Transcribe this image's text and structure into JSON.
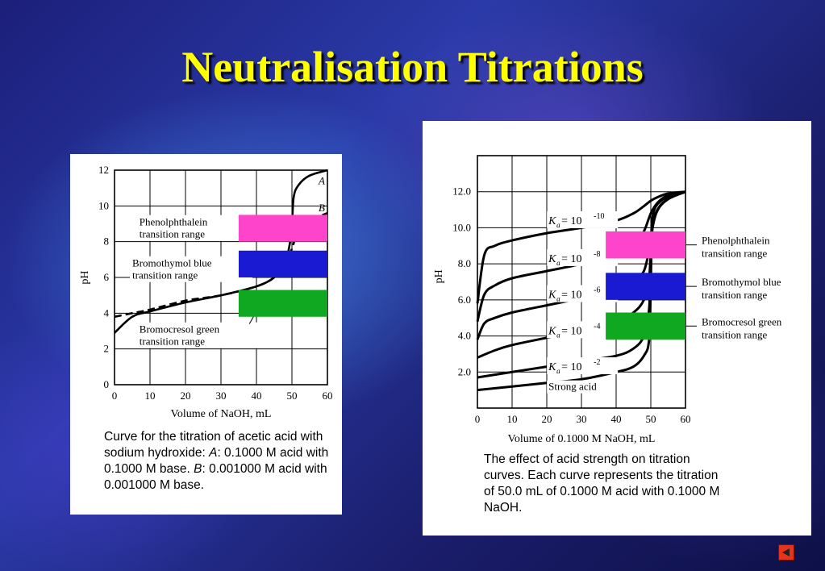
{
  "slide": {
    "title": "Neutralisation Titrations"
  },
  "colors": {
    "phenolphthalein": "#ff44cc",
    "bromothymol": "#1a1ad2",
    "bromocresol": "#10a820",
    "title": "#ffff00"
  },
  "chart_data": [
    {
      "type": "line",
      "title": "",
      "xlabel": "Volume of NaOH, mL",
      "ylabel": "pH",
      "xlim": [
        0,
        60
      ],
      "ylim": [
        0,
        12
      ],
      "xticks": [
        "0",
        "10",
        "20",
        "30",
        "40",
        "50",
        "60"
      ],
      "yticks": [
        "0",
        "2",
        "4",
        "6",
        "8",
        "10",
        "12"
      ],
      "grid": true,
      "series": [
        {
          "name": "A",
          "style": "solid",
          "x": [
            0,
            5,
            10,
            20,
            30,
            40,
            45,
            48,
            49.5,
            50,
            50.5,
            52,
            55,
            60
          ],
          "y": [
            2.9,
            3.8,
            4.1,
            4.6,
            5.0,
            5.5,
            6.0,
            6.7,
            8.0,
            8.7,
            10.5,
            11.2,
            11.7,
            12.0
          ]
        },
        {
          "name": "B",
          "style": "dashed",
          "x": [
            0,
            5,
            10,
            20,
            30,
            40,
            45,
            48,
            50,
            52,
            55,
            60
          ],
          "y": [
            3.8,
            4.0,
            4.2,
            4.7,
            5.0,
            5.5,
            6.0,
            6.8,
            7.6,
            8.8,
            9.2,
            9.6
          ]
        }
      ],
      "bands": [
        {
          "label": "Phenolphthalein transition range",
          "color": "#ff44cc",
          "x": [
            35,
            60
          ],
          "y": [
            8.0,
            9.5
          ]
        },
        {
          "label": "Bromothymol blue transition range",
          "color": "#1a1ad2",
          "x": [
            35,
            60
          ],
          "y": [
            6.0,
            7.5
          ]
        },
        {
          "label": "Bromocresol green transition range",
          "color": "#10a820",
          "x": [
            35,
            60
          ],
          "y": [
            3.8,
            5.3
          ]
        }
      ],
      "annotations": [
        "Phenolphthalein transition range",
        "Bromothymol blue transition range",
        "Bromocresol green transition range"
      ],
      "caption_parts": [
        "Curve for the titration of acetic acid with sodium hydroxide: ",
        "A",
        ": 0.1000 M acid with 0.1000 M base. ",
        "B",
        ": 0.001000 M acid with 0.001000 M base."
      ]
    },
    {
      "type": "line",
      "title": "",
      "xlabel": "Volume of 0.1000 M NaOH, mL",
      "ylabel": "pH",
      "xlim": [
        0,
        60
      ],
      "ylim": [
        0,
        14
      ],
      "xticks": [
        "0",
        "10",
        "20",
        "30",
        "40",
        "50",
        "60"
      ],
      "yticks": [
        "2.0",
        "4.0",
        "6.0",
        "8.0",
        "10.0",
        "12.0"
      ],
      "grid": true,
      "series": [
        {
          "name": "Ka = 10^-10",
          "x": [
            0,
            2,
            5,
            10,
            20,
            30,
            40,
            45,
            48,
            50,
            52,
            55,
            60
          ],
          "y": [
            5.8,
            8.5,
            9.0,
            9.3,
            9.7,
            10.0,
            10.4,
            10.8,
            11.2,
            11.5,
            11.7,
            11.9,
            12.0
          ]
        },
        {
          "name": "Ka = 10^-8",
          "x": [
            0,
            2,
            5,
            10,
            20,
            30,
            40,
            45,
            48,
            50,
            52,
            55,
            60
          ],
          "y": [
            4.8,
            6.3,
            6.8,
            7.2,
            7.6,
            8.0,
            8.6,
            9.0,
            9.8,
            10.8,
            11.4,
            11.8,
            12.0
          ]
        },
        {
          "name": "Ka = 10^-6",
          "x": [
            0,
            2,
            5,
            10,
            20,
            30,
            40,
            45,
            48,
            49.5,
            50,
            51,
            53,
            56,
            60
          ],
          "y": [
            3.8,
            4.7,
            5.0,
            5.3,
            5.7,
            6.1,
            6.6,
            7.0,
            7.6,
            8.8,
            9.6,
            10.6,
            11.3,
            11.7,
            12.0
          ]
        },
        {
          "name": "Ka = 10^-4",
          "x": [
            0,
            5,
            10,
            20,
            30,
            40,
            45,
            48,
            49.5,
            50,
            50.5,
            52,
            55,
            60
          ],
          "y": [
            2.8,
            3.2,
            3.5,
            3.9,
            4.3,
            4.8,
            5.3,
            6.0,
            7.2,
            8.8,
            10.0,
            11.0,
            11.6,
            12.0
          ]
        },
        {
          "name": "Ka = 10^-2",
          "x": [
            0,
            10,
            20,
            30,
            40,
            45,
            48,
            49.5,
            50,
            50.5,
            52,
            55,
            60
          ],
          "y": [
            1.7,
            2.0,
            2.3,
            2.6,
            2.9,
            3.3,
            4.0,
            5.5,
            8.0,
            10.0,
            11.0,
            11.6,
            12.0
          ]
        },
        {
          "name": "Strong acid",
          "x": [
            0,
            10,
            20,
            30,
            40,
            45,
            48,
            49.5,
            50,
            50.3,
            51,
            53,
            56,
            60
          ],
          "y": [
            1.0,
            1.2,
            1.4,
            1.6,
            2.0,
            2.3,
            2.9,
            3.8,
            7.0,
            10.0,
            11.0,
            11.5,
            11.8,
            12.0
          ]
        }
      ],
      "series_labels": [
        {
          "prefix": "K",
          "sub": "a",
          "mid": " = 10",
          "sup": "-10"
        },
        {
          "prefix": "K",
          "sub": "a",
          "mid": " = 10",
          "sup": "-8"
        },
        {
          "prefix": "K",
          "sub": "a",
          "mid": " = 10",
          "sup": "-6"
        },
        {
          "prefix": "K",
          "sub": "a",
          "mid": " = 10",
          "sup": "-4"
        },
        {
          "prefix": "K",
          "sub": "a",
          "mid": " = 10",
          "sup": "-2"
        },
        {
          "text": "Strong acid"
        }
      ],
      "bands": [
        {
          "label": "Phenolphthalein transition range",
          "color": "#ff44cc",
          "x": [
            37,
            60
          ],
          "y": [
            8.3,
            9.8
          ]
        },
        {
          "label": "Bromothymol blue transition range",
          "color": "#1a1ad2",
          "x": [
            37,
            60
          ],
          "y": [
            6.0,
            7.5
          ]
        },
        {
          "label": "Bromocresol green transition range",
          "color": "#10a820",
          "x": [
            37,
            60
          ],
          "y": [
            3.8,
            5.3
          ]
        }
      ],
      "annotations": [
        [
          "Phenolphthalein",
          "transition range"
        ],
        [
          "Bromothymol blue",
          "transition range"
        ],
        [
          "Bromocresol green",
          "transition range"
        ]
      ],
      "caption": "The effect of acid strength on titration curves. Each curve represents the titration of 50.0 mL of 0.1000 M acid with 0.1000 M NaOH."
    }
  ]
}
